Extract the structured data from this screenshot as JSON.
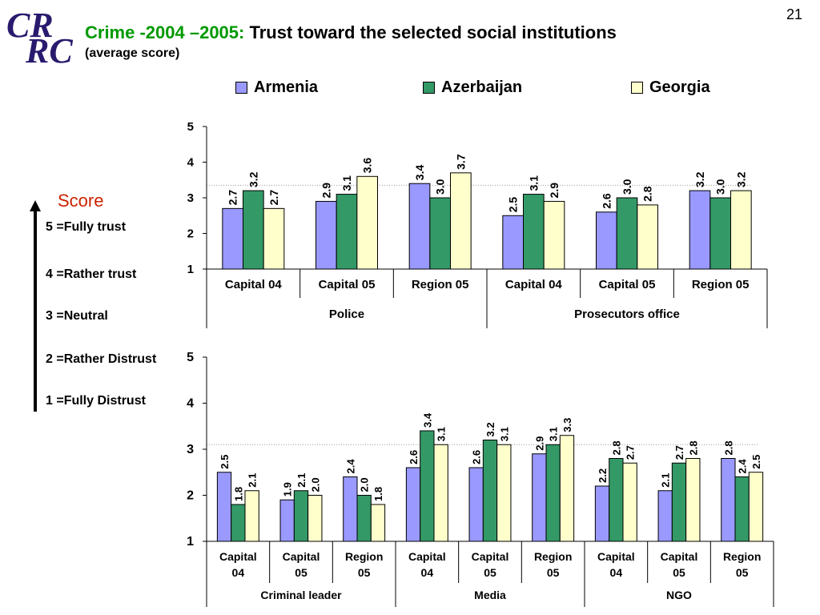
{
  "page": {
    "slide_number": "21"
  },
  "logo": {
    "line1": "CR",
    "line2": "RC"
  },
  "header": {
    "title_accent": "Crime -2004 –2005: ",
    "title_main": "Trust toward the selected social institutions",
    "subtitle": "(average score)"
  },
  "legend": {
    "items": [
      {
        "label": "Armenia",
        "color": "#9999ff"
      },
      {
        "label": "Azerbaijan",
        "color": "#339966"
      },
      {
        "label": "Georgia",
        "color": "#ffffcc"
      }
    ]
  },
  "scale": {
    "title": "Score",
    "items": [
      "5 =Fully trust",
      "4 =Rather trust",
      "3 =Neutral",
      "2 =Rather Distrust",
      "1 =Fully Distrust"
    ]
  },
  "chart_data": [
    {
      "type": "bar",
      "series_names": [
        "Armenia",
        "Azerbaijan",
        "Georgia"
      ],
      "ylim": [
        1,
        5
      ],
      "yticks": [
        "1",
        "2",
        "3",
        "4",
        "5"
      ],
      "reference_line": 3.35,
      "groups": [
        {
          "label": "Police",
          "categories": [
            {
              "label": "Capital 04",
              "values": [
                2.7,
                3.2,
                2.7
              ],
              "labels": [
                "2.7",
                "3.2",
                "2.7"
              ]
            },
            {
              "label": "Capital 05",
              "values": [
                2.9,
                3.1,
                3.6
              ],
              "labels": [
                "2.9",
                "3.1",
                "3.6"
              ]
            },
            {
              "label": "Region 05",
              "values": [
                3.4,
                3.0,
                3.7
              ],
              "labels": [
                "3.4",
                "3.0",
                "3.7"
              ]
            }
          ]
        },
        {
          "label": "Prosecutors office",
          "categories": [
            {
              "label": "Capital 04",
              "values": [
                2.5,
                3.1,
                2.9
              ],
              "labels": [
                "2.5",
                "3.1",
                "2.9"
              ]
            },
            {
              "label": "Capital 05",
              "values": [
                2.6,
                3.0,
                2.8
              ],
              "labels": [
                "2.6",
                "3.0",
                "2.8"
              ]
            },
            {
              "label": "Region 05",
              "values": [
                3.2,
                3.0,
                3.2
              ],
              "labels": [
                "3.2",
                "3.0",
                "3.2"
              ]
            }
          ]
        }
      ]
    },
    {
      "type": "bar",
      "series_names": [
        "Armenia",
        "Azerbaijan",
        "Georgia"
      ],
      "ylim": [
        1,
        5
      ],
      "yticks": [
        "1",
        "2",
        "3",
        "4",
        "5"
      ],
      "reference_line": 3.1,
      "groups": [
        {
          "label": "Criminal leader",
          "categories": [
            {
              "label": [
                "Capital",
                "04"
              ],
              "values": [
                2.5,
                1.8,
                2.1
              ],
              "labels": [
                "2.5",
                "1.8",
                "2.1"
              ]
            },
            {
              "label": [
                "Capital",
                "05"
              ],
              "values": [
                1.9,
                2.1,
                2.0
              ],
              "labels": [
                "1.9",
                "2.1",
                "2.0"
              ]
            },
            {
              "label": [
                "Region",
                "05"
              ],
              "values": [
                2.4,
                2.0,
                1.8
              ],
              "labels": [
                "2.4",
                "2.0",
                "1.8"
              ]
            }
          ]
        },
        {
          "label": "Media",
          "categories": [
            {
              "label": [
                "Capital",
                "04"
              ],
              "values": [
                2.6,
                3.4,
                3.1
              ],
              "labels": [
                "2.6",
                "3.4",
                "3.1"
              ]
            },
            {
              "label": [
                "Capital",
                "05"
              ],
              "values": [
                2.6,
                3.2,
                3.1
              ],
              "labels": [
                "2.6",
                "3.2",
                "3.1"
              ]
            },
            {
              "label": [
                "Region",
                "05"
              ],
              "values": [
                2.9,
                3.1,
                3.3
              ],
              "labels": [
                "2.9",
                "3.1",
                "3.3"
              ]
            }
          ]
        },
        {
          "label": "NGO",
          "categories": [
            {
              "label": [
                "Capital",
                "04"
              ],
              "values": [
                2.2,
                2.8,
                2.7
              ],
              "labels": [
                "2.2",
                "2.8",
                "2.7"
              ]
            },
            {
              "label": [
                "Capital",
                "05"
              ],
              "values": [
                2.1,
                2.7,
                2.8
              ],
              "labels": [
                "2.1",
                "2.7",
                "2.8"
              ]
            },
            {
              "label": [
                "Region",
                "05"
              ],
              "values": [
                2.8,
                2.4,
                2.5
              ],
              "labels": [
                "2.8",
                "2.4",
                "2.5"
              ]
            }
          ]
        }
      ]
    }
  ]
}
